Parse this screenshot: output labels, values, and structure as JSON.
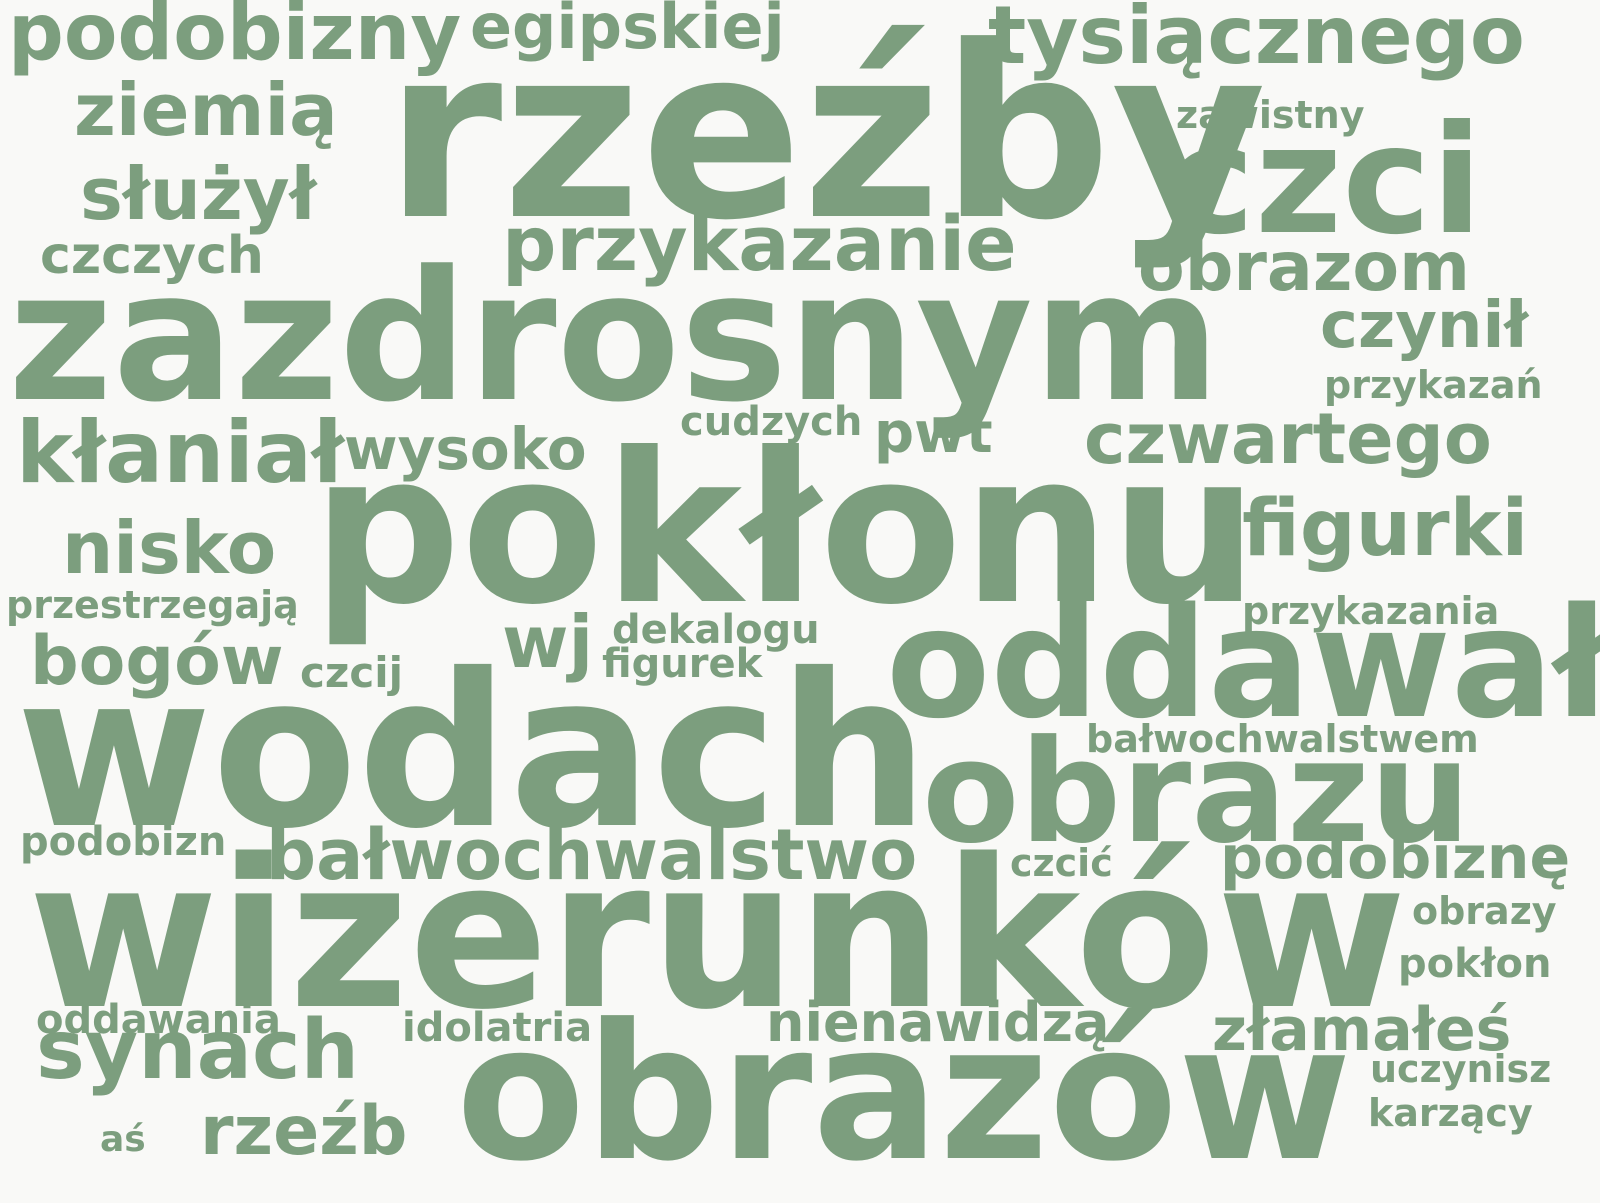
{
  "color": "#7c9e7e",
  "words": [
    "podobizny",
    "egipskiej",
    "tysiącznego",
    "ziemią",
    "rzeźby",
    "zawistny",
    "służył",
    "czci",
    "czczych",
    "przykazanie",
    "obrazom",
    "zazdrosnym",
    "czynił",
    "przykazań",
    "cudzych",
    "kłaniał",
    "wysoko",
    "pwt",
    "czwartego",
    "pokłonu",
    "figurki",
    "nisko",
    "przestrzegają",
    "przykazania",
    "wj",
    "dekalogu",
    "bogów",
    "czcij",
    "figurek",
    "oddawał",
    "wodach",
    "bałwochwalstwem",
    "obrazu",
    "podobizn",
    "bałwochwalstwo",
    "czcić",
    "podobiznę",
    "wizerunków",
    "obrazy",
    "pokłon",
    "oddawania",
    "idolatria",
    "nienawidzą",
    "złamałeś",
    "synach",
    "uczynisz",
    "obrazów",
    "karzący",
    "aś",
    "rzeźb"
  ]
}
